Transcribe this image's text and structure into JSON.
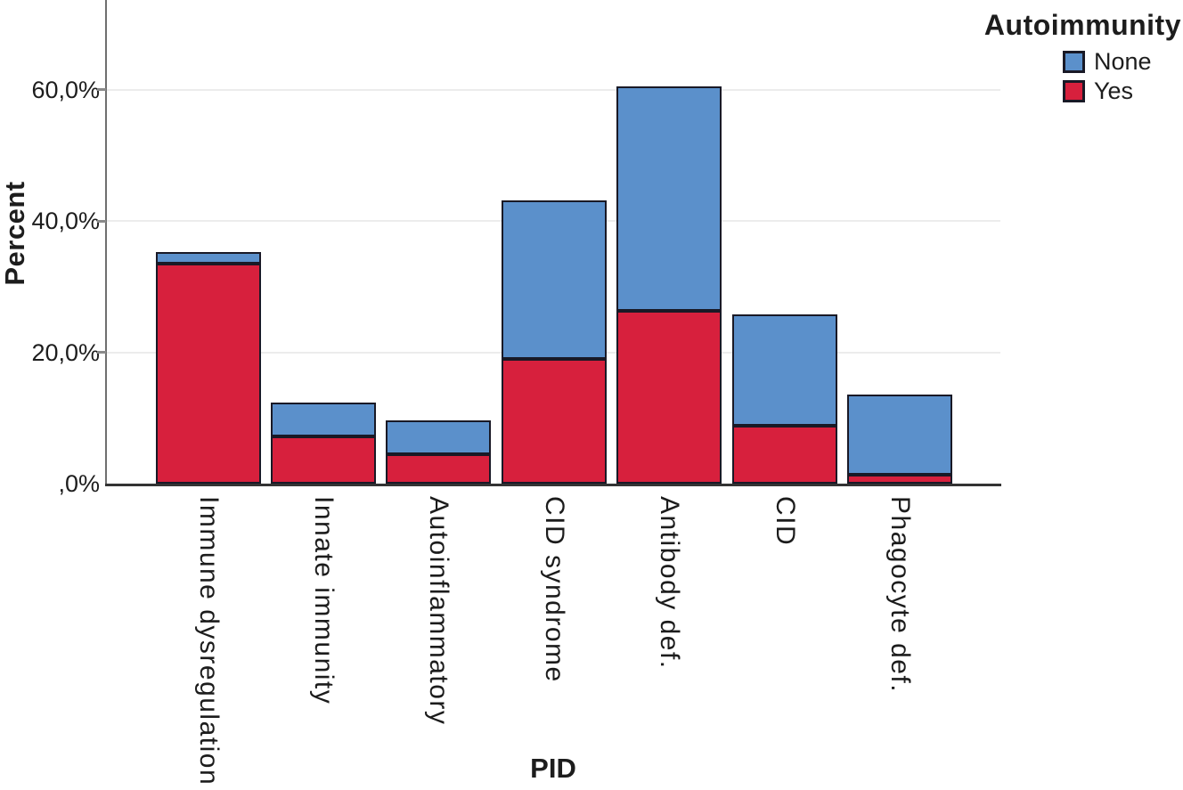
{
  "axes": {
    "y_label": "Percent",
    "x_label": "PID"
  },
  "chart_data": {
    "type": "bar",
    "stacked": true,
    "title": "",
    "xlabel": "PID",
    "ylabel": "Percent",
    "categories": [
      "Immune dysregulation",
      "Innate immunity",
      "Autoinflammatory",
      "CID syndrome",
      "Antibody def.",
      "CID",
      "Phagocyte def."
    ],
    "series": [
      {
        "name": "Yes",
        "color": "#D7203D",
        "values": [
          33.5,
          7.2,
          4.5,
          19.0,
          26.3,
          8.8,
          1.4
        ]
      },
      {
        "name": "None",
        "color": "#5B90CB",
        "values": [
          1.8,
          5.2,
          5.1,
          24.1,
          34.2,
          17.0,
          12.2
        ]
      }
    ],
    "totals": [
      35.3,
      12.4,
      9.6,
      43.1,
      60.5,
      25.8,
      13.6
    ],
    "y_ticks": [
      ",0%",
      "20,0%",
      "40,0%",
      "60,0%"
    ],
    "y_tick_values": [
      0,
      20,
      40,
      60
    ],
    "ylim": [
      0,
      73.7
    ],
    "grid": "faint-horizontal",
    "legend": {
      "title": "Autoimmunity",
      "position": "top-right",
      "entries": [
        {
          "label": "None",
          "color": "#5B90CB"
        },
        {
          "label": "Yes",
          "color": "#D7203D"
        }
      ]
    },
    "colors": {
      "bar_outline": "#191926",
      "y_axis": "#6f6f6f",
      "x_axis": "#333333",
      "text": "#1d1d1d"
    }
  }
}
